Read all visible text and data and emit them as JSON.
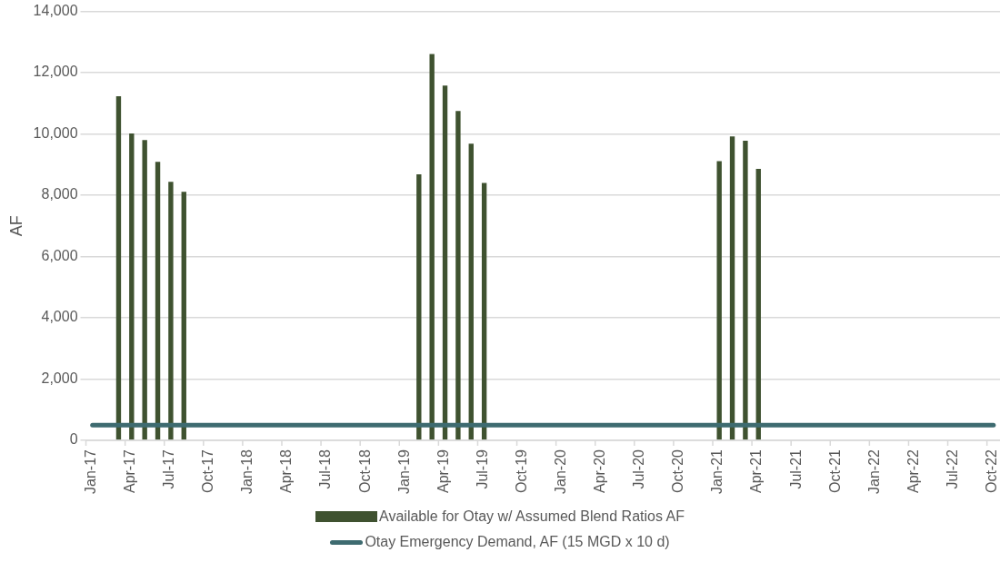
{
  "chart_data": {
    "type": "bar",
    "ylabel": "AF",
    "categories": [
      "Jan-17",
      null,
      null,
      "Apr-17",
      null,
      null,
      "Jul-17",
      null,
      null,
      "Oct-17",
      null,
      null,
      "Jan-18",
      null,
      null,
      "Apr-18",
      null,
      null,
      "Jul-18",
      null,
      null,
      "Oct-18",
      null,
      null,
      "Jan-19",
      null,
      null,
      "Apr-19",
      null,
      null,
      "Jul-19",
      null,
      null,
      "Oct-19",
      null,
      null,
      "Jan-20",
      null,
      null,
      "Apr-20",
      null,
      null,
      "Jul-20",
      null,
      null,
      "Oct-20",
      null,
      null,
      "Jan-21",
      null,
      null,
      "Apr-21",
      null,
      null,
      "Jul-21",
      null,
      null,
      "Oct-21",
      null,
      null,
      "Jan-22",
      null,
      null,
      "Apr-22",
      null,
      null,
      "Jul-22",
      null,
      null,
      "Oct-22"
    ],
    "series": [
      {
        "name": "Available for Otay w/ Assumed Blend Ratios AF",
        "color": "#3f5230",
        "values": [
          null,
          null,
          11230,
          10020,
          9800,
          9090,
          8440,
          8110,
          null,
          null,
          null,
          null,
          null,
          null,
          null,
          null,
          null,
          null,
          null,
          null,
          null,
          null,
          null,
          null,
          null,
          8680,
          12610,
          11580,
          10750,
          9680,
          8400,
          null,
          null,
          null,
          null,
          null,
          null,
          null,
          null,
          null,
          null,
          null,
          null,
          null,
          null,
          null,
          null,
          null,
          9110,
          9920,
          9780,
          8860,
          null,
          null,
          null,
          null,
          null,
          null,
          null,
          null,
          null,
          null,
          null,
          null,
          null,
          null,
          null,
          null,
          null,
          null
        ]
      },
      {
        "name": "Otay Emergency Demand, AF (15 MGD x 10 d)",
        "type": "line",
        "color": "#3e6b70",
        "values": [
          500,
          500,
          500,
          500,
          500,
          500,
          500,
          500,
          500,
          500,
          500,
          500,
          500,
          500,
          500,
          500,
          500,
          500,
          500,
          500,
          500,
          500,
          500,
          500,
          500,
          500,
          500,
          500,
          500,
          500,
          500,
          500,
          500,
          500,
          500,
          500,
          500,
          500,
          500,
          500,
          500,
          500,
          500,
          500,
          500,
          500,
          500,
          500,
          500,
          500,
          500,
          500,
          500,
          500,
          500,
          500,
          500,
          500,
          500,
          500,
          500,
          500,
          500,
          500,
          500,
          500,
          500,
          500,
          500,
          500
        ]
      }
    ],
    "ylim": [
      0,
      14000
    ],
    "yticks": [
      0,
      {
        "value": 2000,
        "label": "2,000"
      },
      {
        "value": 4000,
        "label": "4,000"
      },
      {
        "value": 6000,
        "label": "6,000"
      },
      {
        "value": 8000,
        "label": "8,000"
      },
      {
        "value": 10000,
        "label": "10,000"
      },
      {
        "value": 12000,
        "label": "12,000"
      },
      {
        "value": 14000,
        "label": "14,000"
      }
    ],
    "grid": "y",
    "legend": "bottom",
    "marker": "none",
    "line_style": "solid"
  }
}
